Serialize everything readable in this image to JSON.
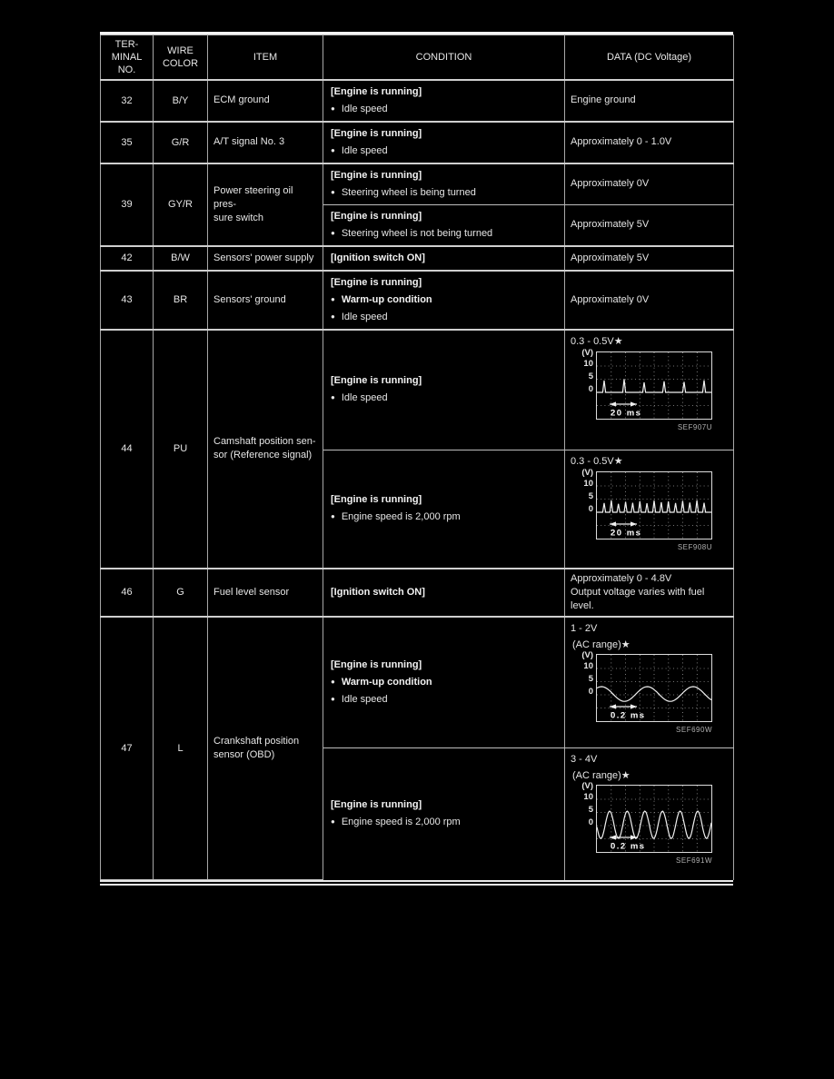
{
  "table": {
    "headers": {
      "terminal": "TER-\nMINAL\nNO.",
      "wire": "WIRE\nCOLOR",
      "item": "ITEM",
      "condition": "CONDITION",
      "data": "DATA (DC Voltage)"
    },
    "rows": [
      {
        "terminal": "32",
        "wire": "B/Y",
        "item": "ECM ground",
        "cells": [
          {
            "condition": {
              "header": "[Engine is running]",
              "bullets": [
                {
                  "text": "Idle speed",
                  "bold": false
                }
              ]
            },
            "data": {
              "text": "Engine ground"
            }
          }
        ]
      },
      {
        "terminal": "35",
        "wire": "G/R",
        "item": "A/T signal No. 3",
        "cells": [
          {
            "condition": {
              "header": "[Engine is running]",
              "bullets": [
                {
                  "text": "Idle speed",
                  "bold": false
                }
              ]
            },
            "data": {
              "text": "Approximately 0 - 1.0V"
            }
          }
        ]
      },
      {
        "terminal": "39",
        "wire": "GY/R",
        "item": "Power steering oil pres-\nsure switch",
        "cells": [
          {
            "condition": {
              "header": "[Engine is running]",
              "bullets": [
                {
                  "text": "Steering wheel is being turned",
                  "bold": false
                }
              ]
            },
            "data": {
              "text": "Approximately 0V"
            }
          },
          {
            "condition": {
              "header": "[Engine is running]",
              "bullets": [
                {
                  "text": "Steering wheel is not being turned",
                  "bold": false
                }
              ]
            },
            "data": {
              "text": "Approximately 5V"
            }
          }
        ]
      },
      {
        "terminal": "42",
        "wire": "B/W",
        "item": "Sensors' power supply",
        "cells": [
          {
            "condition": {
              "header": "[Ignition switch ON]",
              "bullets": []
            },
            "data": {
              "text": "Approximately 5V"
            }
          }
        ]
      },
      {
        "terminal": "43",
        "wire": "BR",
        "item": "Sensors' ground",
        "cells": [
          {
            "condition": {
              "header": "[Engine is running]",
              "bullets": [
                {
                  "text": "Warm-up condition",
                  "bold": true
                },
                {
                  "text": "Idle speed",
                  "bold": false
                }
              ]
            },
            "data": {
              "text": "Approximately 0V"
            }
          }
        ]
      },
      {
        "terminal": "44",
        "wire": "PU",
        "item": "Camshaft position sen-\nsor (Reference signal)",
        "cells": [
          {
            "condition": {
              "header": "[Engine is running]",
              "bullets": [
                {
                  "text": "Idle speed",
                  "bold": false
                }
              ]
            },
            "data": {
              "scope": 0
            }
          },
          {
            "condition": {
              "header": "[Engine is running]",
              "bullets": [
                {
                  "text": "Engine speed is 2,000 rpm",
                  "bold": false
                }
              ]
            },
            "data": {
              "scope": 1
            }
          }
        ]
      },
      {
        "terminal": "46",
        "wire": "G",
        "item": "Fuel level sensor",
        "cells": [
          {
            "condition": {
              "header": "[Ignition switch ON]",
              "bullets": []
            },
            "data": {
              "text": "Approximately 0 - 4.8V\nOutput voltage varies with fuel\nlevel."
            }
          }
        ]
      },
      {
        "terminal": "47",
        "wire": "L",
        "item": "Crankshaft position\nsensor (OBD)",
        "cells": [
          {
            "condition": {
              "header": "[Engine is running]",
              "bullets": [
                {
                  "text": "Warm-up condition",
                  "bold": true
                },
                {
                  "text": "Idle speed",
                  "bold": false
                }
              ]
            },
            "data": {
              "scope": 2
            }
          },
          {
            "condition": {
              "header": "[Engine is running]",
              "bullets": [
                {
                  "text": "Engine speed is 2,000 rpm",
                  "bold": false
                }
              ]
            },
            "data": {
              "scope": 3
            }
          }
        ]
      }
    ]
  },
  "chart_data": [
    {
      "type": "line",
      "id": "SEF907U",
      "title": "Camshaft position sensor reference signal, idle speed",
      "volt_label": "0.3 - 0.5V★",
      "range_label": null,
      "y_unit": "(V)",
      "y_ticks": [
        10,
        5,
        0
      ],
      "ylim": [
        -10,
        15
      ],
      "time_scale_label": "20 ms",
      "grid": "dotted",
      "waveform": "pulse",
      "baseline_v": 0,
      "pulse_heights_v": [
        4.5,
        5,
        3.8,
        4.2,
        4,
        4.6
      ]
    },
    {
      "type": "line",
      "id": "SEF908U",
      "title": "Camshaft position sensor reference signal, 2,000 rpm",
      "volt_label": "0.3 - 0.5V★",
      "range_label": null,
      "y_unit": "(V)",
      "y_ticks": [
        10,
        5,
        0
      ],
      "ylim": [
        -10,
        15
      ],
      "time_scale_label": "20 ms",
      "grid": "dotted",
      "waveform": "pulse",
      "baseline_v": 0,
      "pulse_heights_v": [
        3.5,
        4.5,
        3.2,
        4,
        3.6,
        4.2,
        3.4,
        4.4,
        3.8,
        4.1,
        3.5,
        4.3,
        3.7,
        4.5,
        3.6
      ]
    },
    {
      "type": "line",
      "id": "SEF690W",
      "title": "Crankshaft position sensor (OBD), warm-up, idle speed",
      "volt_label": "1 - 2V",
      "range_label": "(AC range)★",
      "y_unit": "(V)",
      "y_ticks": [
        10,
        5,
        0
      ],
      "ylim": [
        -10,
        15
      ],
      "time_scale_label": "0.2 ms",
      "grid": "dotted",
      "waveform": "sine",
      "cycles": 2.5,
      "amplitude_v": 2.8,
      "center_v": 0.3,
      "phase": 0.93
    },
    {
      "type": "line",
      "id": "SEF691W",
      "title": "Crankshaft position sensor (OBD), 2,000 rpm",
      "volt_label": "3 - 4V",
      "range_label": "(AC range)★",
      "y_unit": "(V)",
      "y_ticks": [
        10,
        5,
        0
      ],
      "ylim": [
        -10,
        15
      ],
      "time_scale_label": "0.2 ms",
      "grid": "dotted",
      "waveform": "sine",
      "cycles": 6.5,
      "amplitude_v": 5.2,
      "center_v": 0.3,
      "phase": 3.3
    }
  ]
}
